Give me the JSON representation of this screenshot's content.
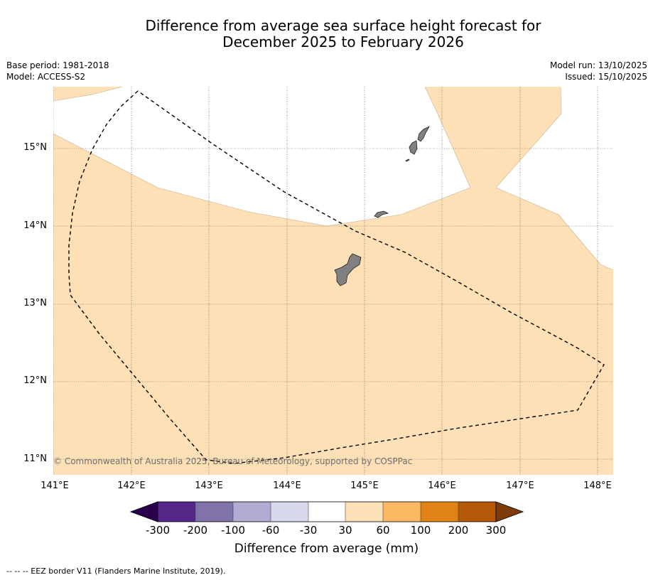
{
  "title_line1": "Difference from average sea surface height forecast for",
  "title_line2": "December 2025 to February 2026",
  "meta_left": [
    "Base period: 1981-2018",
    "Model: ACCESS-S2"
  ],
  "meta_right": [
    "Model run: 13/10/2025",
    "Issued: 15/10/2025"
  ],
  "latitude_labels": [
    "15°N",
    "14°N",
    "13°N",
    "12°N",
    "11°N"
  ],
  "longitude_labels": [
    "141°E",
    "142°E",
    "143°E",
    "144°E",
    "145°E",
    "146°E",
    "147°E",
    "148°E"
  ],
  "copyright": "© Commonwealth of Australia 2025, Bureau of Meteorology, supported by COSPPac",
  "colorbar": {
    "ticks": [
      "-300",
      "-200",
      "-100",
      "-60",
      "-30",
      "30",
      "60",
      "100",
      "200",
      "300"
    ],
    "colors": [
      "#2d004b",
      "#542788",
      "#8073ac",
      "#b2abd2",
      "#d8daeb",
      "#ffffff",
      "#fee0b6",
      "#fdb863",
      "#e08214",
      "#b35806",
      "#7f3b08"
    ],
    "label": "Difference from average (mm)"
  },
  "legend_note": "-- -- -- EEZ border V11 (Flanders Marine Institute, 2019).",
  "colors": {
    "map_fill": "#fde0b6",
    "land": "#808080",
    "gridline": "#555555"
  }
}
